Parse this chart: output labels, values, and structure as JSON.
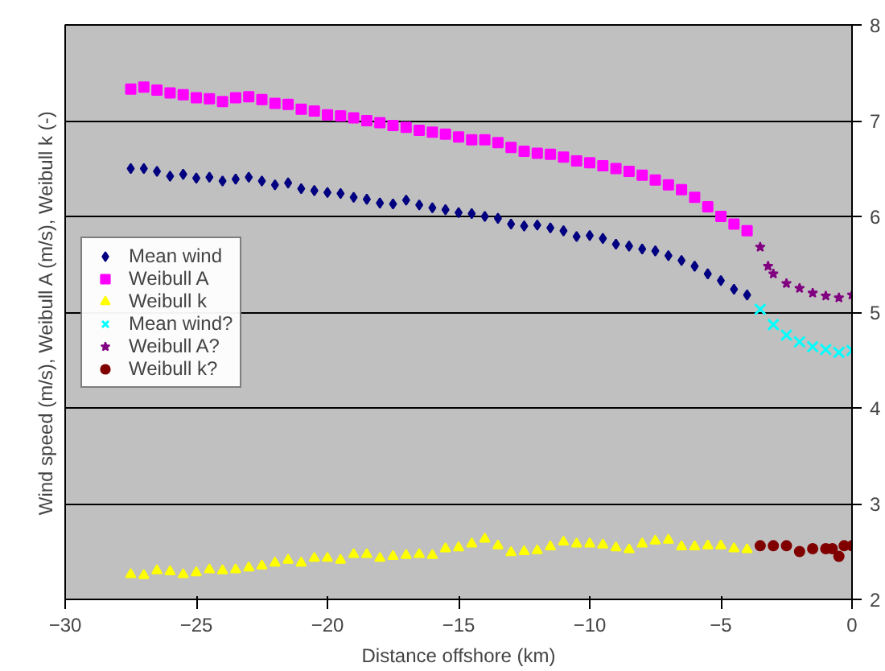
{
  "chart_data": {
    "type": "scatter",
    "xlabel": "Distance offshore (km)",
    "ylabel": "Wind speed (m/s), Weibull A (m/s), Weibull k (-)",
    "x": [
      -27.5,
      -27,
      -26.5,
      -26,
      -25.5,
      -25,
      -24.5,
      -24,
      -23.5,
      -23,
      -22.5,
      -22,
      -21.5,
      -21,
      -20.5,
      -20,
      -19.5,
      -19,
      -18.5,
      -18,
      -17.5,
      -17,
      -16.5,
      -16,
      -15.5,
      -15,
      -14.5,
      -14,
      -13.5,
      -13,
      -12.5,
      -12,
      -11.5,
      -11,
      -10.5,
      -10,
      -9.5,
      -9,
      -8.5,
      -8,
      -7.5,
      -7,
      -6.5,
      -6,
      -5.5,
      -5,
      -4.5,
      -4
    ],
    "series": [
      {
        "name": "Mean wind",
        "color": "#000080",
        "marker": "diamond",
        "values": [
          6.5,
          6.5,
          6.47,
          6.42,
          6.44,
          6.4,
          6.41,
          6.37,
          6.39,
          6.41,
          6.37,
          6.33,
          6.35,
          6.29,
          6.27,
          6.25,
          6.24,
          6.2,
          6.18,
          6.14,
          6.13,
          6.17,
          6.12,
          6.09,
          6.07,
          6.04,
          6.03,
          6.0,
          5.98,
          5.92,
          5.9,
          5.91,
          5.88,
          5.85,
          5.79,
          5.8,
          5.77,
          5.71,
          5.69,
          5.66,
          5.64,
          5.59,
          5.54,
          5.48,
          5.4,
          5.33,
          5.24,
          5.18
        ]
      },
      {
        "name": "Weibull A",
        "color": "#ff00ff",
        "marker": "square",
        "values": [
          7.33,
          7.35,
          7.32,
          7.29,
          7.27,
          7.24,
          7.23,
          7.2,
          7.24,
          7.25,
          7.22,
          7.18,
          7.17,
          7.12,
          7.1,
          7.06,
          7.05,
          7.03,
          7.0,
          6.98,
          6.95,
          6.93,
          6.9,
          6.88,
          6.86,
          6.83,
          6.8,
          6.8,
          6.77,
          6.72,
          6.68,
          6.66,
          6.65,
          6.62,
          6.58,
          6.56,
          6.53,
          6.5,
          6.47,
          6.43,
          6.38,
          6.33,
          6.28,
          6.2,
          6.1,
          6.0,
          5.92,
          5.85
        ]
      },
      {
        "name": "Weibull k",
        "color": "#ffff00",
        "marker": "triangle",
        "values": [
          2.26,
          2.25,
          2.3,
          2.29,
          2.26,
          2.28,
          2.31,
          2.3,
          2.31,
          2.33,
          2.35,
          2.38,
          2.41,
          2.38,
          2.43,
          2.43,
          2.41,
          2.47,
          2.47,
          2.43,
          2.45,
          2.46,
          2.47,
          2.46,
          2.53,
          2.54,
          2.58,
          2.63,
          2.56,
          2.49,
          2.5,
          2.51,
          2.55,
          2.6,
          2.58,
          2.58,
          2.57,
          2.54,
          2.52,
          2.58,
          2.61,
          2.62,
          2.55,
          2.55,
          2.56,
          2.56,
          2.53,
          2.52
        ]
      },
      {
        "name": "Mean wind?",
        "color": "#00ffff",
        "marker": "cross",
        "x": [
          -3.5,
          -3,
          -2.5,
          -2,
          -1.5,
          -1,
          -0.5,
          0
        ],
        "values": [
          5.03,
          4.87,
          4.76,
          4.69,
          4.64,
          4.61,
          4.58,
          4.6
        ]
      },
      {
        "name": "Weibull A?",
        "color": "#800080",
        "marker": "star",
        "x": [
          -3.5,
          -3.2,
          -3,
          -2.5,
          -2,
          -1.5,
          -1,
          -0.5,
          0
        ],
        "values": [
          5.68,
          5.48,
          5.4,
          5.3,
          5.25,
          5.2,
          5.17,
          5.15,
          5.18
        ]
      },
      {
        "name": "Weibull k?",
        "color": "#800000",
        "marker": "circle",
        "x": [
          -3.5,
          -3,
          -2.5,
          -2,
          -1.5,
          -1,
          -0.75,
          -0.5,
          -0.3,
          0
        ],
        "values": [
          2.56,
          2.56,
          2.56,
          2.5,
          2.53,
          2.53,
          2.53,
          2.45,
          2.56,
          2.56
        ]
      }
    ],
    "xlim": [
      -30,
      0
    ],
    "xticks": [
      -30,
      -25,
      -20,
      -15,
      -10,
      -5,
      0
    ],
    "ylim": [
      2,
      8
    ],
    "yticks": [
      2,
      3,
      4,
      5,
      6,
      7,
      8
    ],
    "grid": "y",
    "legend": "left"
  }
}
